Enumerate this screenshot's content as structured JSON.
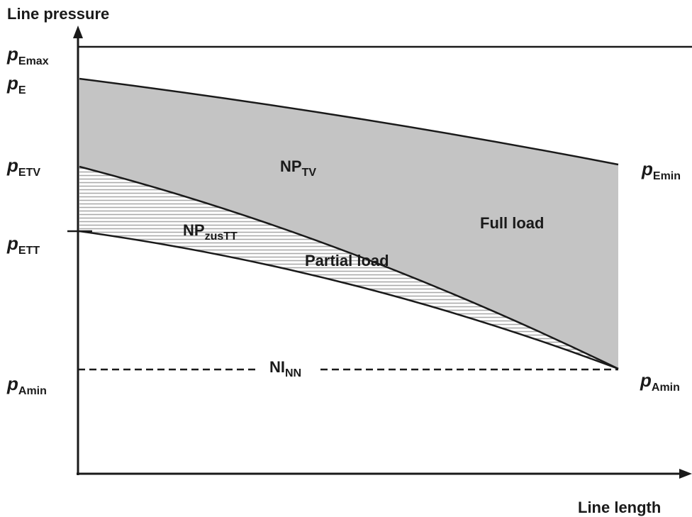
{
  "title": "Line pressure",
  "x_axis_label": "Line length",
  "left_labels": [
    {
      "base": "p",
      "sub": "Emax"
    },
    {
      "base": "p",
      "sub": "E"
    },
    {
      "base": "p",
      "sub": "ETV"
    },
    {
      "base": "p",
      "sub": "ETT"
    },
    {
      "base": "p",
      "sub": "Amin"
    }
  ],
  "right_labels": [
    {
      "base": "p",
      "sub": "Emin"
    },
    {
      "base": "p",
      "sub": "Amin"
    }
  ],
  "regions": {
    "np_tv": {
      "base": "NP",
      "sub": "TV"
    },
    "np_zustt": {
      "base": "NP",
      "sub": "zusTT"
    },
    "full_load": "Full load",
    "partial_load": "Partial load",
    "ni_nn": {
      "base": "NI",
      "sub": "NN"
    }
  }
}
